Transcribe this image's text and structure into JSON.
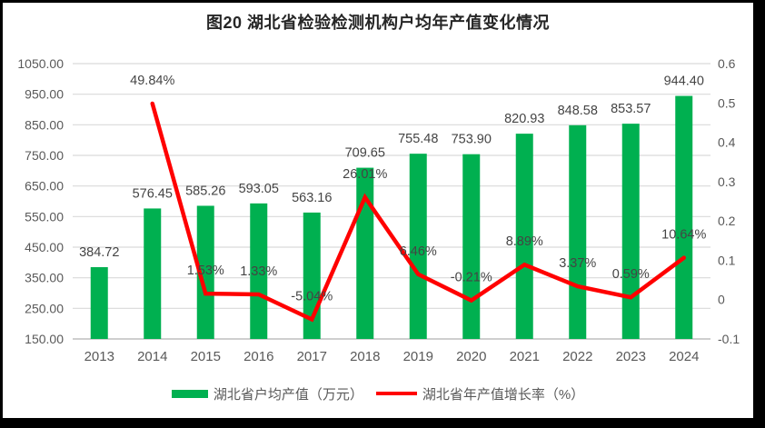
{
  "title": "图20 湖北省检验检测机构户均年产值变化情况",
  "legend": {
    "bar_label": "湖北省户均产值（万元）",
    "line_label": "湖北省年产值增长率（%）"
  },
  "colors": {
    "bar": "#00B050",
    "line": "#FF0000",
    "gridline": "#D9D9D9",
    "axis_line": "#BFBFBF",
    "axis_text": "#595959",
    "data_label_text": "#444444",
    "frame_border": "#000000",
    "background": "#FFFFFF"
  },
  "chart_data": {
    "type": "bar+line combo",
    "title": "图20 湖北省检验检测机构户均年产值变化情况",
    "categories": [
      "2013",
      "2014",
      "2015",
      "2016",
      "2017",
      "2018",
      "2019",
      "2020",
      "2021",
      "2022",
      "2023",
      "2024"
    ],
    "series": [
      {
        "name": "湖北省户均产值（万元）",
        "type": "bar",
        "axis": "left",
        "color": "#00B050",
        "values": [
          384.72,
          576.45,
          585.26,
          593.05,
          563.16,
          709.65,
          755.48,
          753.9,
          820.93,
          848.58,
          853.57,
          944.4
        ],
        "labels": [
          "384.72",
          "576.45",
          "585.26",
          "593.05",
          "563.16",
          "709.65",
          "755.48",
          "753.90",
          "820.93",
          "848.58",
          "853.57",
          "944.40"
        ]
      },
      {
        "name": "湖北省年产值增长率（%）",
        "type": "line",
        "axis": "right",
        "color": "#FF0000",
        "values": [
          null,
          0.4984,
          0.0153,
          0.0133,
          -0.0504,
          0.2601,
          0.0646,
          -0.0021,
          0.0889,
          0.0337,
          0.0059,
          0.1064
        ],
        "labels": [
          null,
          "49.84%",
          "1.53%",
          "1.33%",
          "-5.04%",
          "26.01%",
          "6.46%",
          "-0.21%",
          "8.89%",
          "3.37%",
          "0.59%",
          "10.64%"
        ]
      }
    ],
    "left_axis": {
      "min": 150,
      "max": 1050,
      "ticks": [
        {
          "v": 1050,
          "label": "1050.00"
        },
        {
          "v": 950,
          "label": "950.00"
        },
        {
          "v": 850,
          "label": "850.00"
        },
        {
          "v": 750,
          "label": "750.00"
        },
        {
          "v": 650,
          "label": "650.00"
        },
        {
          "v": 550,
          "label": "550.00"
        },
        {
          "v": 450,
          "label": "450.00"
        },
        {
          "v": 350,
          "label": "350.00"
        },
        {
          "v": 250,
          "label": "250.00"
        },
        {
          "v": 150,
          "label": "150.00"
        }
      ]
    },
    "right_axis": {
      "min": -0.1,
      "max": 0.6,
      "ticks": [
        {
          "v": 0.6,
          "label": "0.6"
        },
        {
          "v": 0.5,
          "label": "0.5"
        },
        {
          "v": 0.4,
          "label": "0.4"
        },
        {
          "v": 0.3,
          "label": "0.3"
        },
        {
          "v": 0.2,
          "label": "0.2"
        },
        {
          "v": 0.1,
          "label": "0.1"
        },
        {
          "v": 0,
          "label": "0"
        },
        {
          "v": -0.1,
          "label": "-0.1"
        }
      ]
    },
    "grid": true,
    "legend_position": "bottom"
  }
}
